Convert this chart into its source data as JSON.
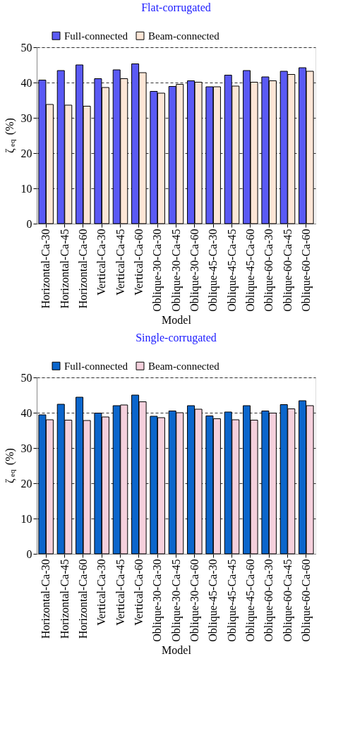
{
  "chart_data": [
    {
      "type": "bar",
      "title": "Flat-corrugated",
      "xlabel": "Model",
      "ylabel": "ζ$_{eq}$ (%)",
      "categories": [
        "Horizontal-Ca-30",
        "Horizontal-Ca-45",
        "Horizontal-Ca-60",
        "Vertical-Ca-30",
        "Vertical-Ca-45",
        "Vertical-Ca-60",
        "Oblique-30-Ca-30",
        "Oblique-30-Ca-45",
        "Oblique-30-Ca-60",
        "Oblique-45-Ca-30",
        "Oblique-45-Ca-45",
        "Oblique-45-Ca-60",
        "Oblique-60-Ca-30",
        "Oblique-60-Ca-45",
        "Oblique-60-Ca-60"
      ],
      "series": [
        {
          "name": "Full-connected",
          "color": "#5a5af5",
          "values": [
            40.7,
            43.4,
            45.0,
            41.1,
            43.6,
            45.3,
            37.5,
            38.9,
            40.5,
            38.8,
            42.1,
            43.4,
            41.6,
            43.2,
            44.2
          ]
        },
        {
          "name": "Beam-connected",
          "color": "#fde6d6",
          "values": [
            33.8,
            33.6,
            33.3,
            38.6,
            41.1,
            42.8,
            37.0,
            39.5,
            40.1,
            38.8,
            39.0,
            40.1,
            40.5,
            42.3,
            43.2
          ]
        }
      ],
      "ylim": [
        0,
        50
      ],
      "yticks": [
        0,
        10,
        20,
        30,
        40,
        50
      ],
      "grid": "y",
      "legend": "top"
    },
    {
      "type": "bar",
      "title": "Single-corrugated",
      "xlabel": "Model",
      "ylabel": "ζ$_{eq}$ (%)",
      "categories": [
        "Horizontal-Ca-30",
        "Horizontal-Ca-45",
        "Horizontal-Ca-60",
        "Vertical-Ca-30",
        "Vertical-Ca-45",
        "Vertical-Ca-60",
        "Oblique-30-Ca-30",
        "Oblique-30-Ca-45",
        "Oblique-30-Ca-60",
        "Oblique-45-Ca-30",
        "Oblique-45-Ca-45",
        "Oblique-45-Ca-60",
        "Oblique-60-Ca-30",
        "Oblique-60-Ca-45",
        "Oblique-60-Ca-60"
      ],
      "series": [
        {
          "name": "Full-connected",
          "color": "#0b66cc",
          "values": [
            39.4,
            42.4,
            44.4,
            39.9,
            42.0,
            45.0,
            39.0,
            40.5,
            42.0,
            39.1,
            40.2,
            42.0,
            40.5,
            42.3,
            43.4
          ]
        },
        {
          "name": "Beam-connected",
          "color": "#f5d0dc",
          "values": [
            38.0,
            37.9,
            37.8,
            38.8,
            42.2,
            43.1,
            38.6,
            40.0,
            41.0,
            38.3,
            38.0,
            37.9,
            39.9,
            41.1,
            42.0
          ]
        }
      ],
      "ylim": [
        0,
        50
      ],
      "yticks": [
        0,
        10,
        20,
        30,
        40,
        50
      ],
      "grid": "y",
      "legend": "top"
    }
  ]
}
